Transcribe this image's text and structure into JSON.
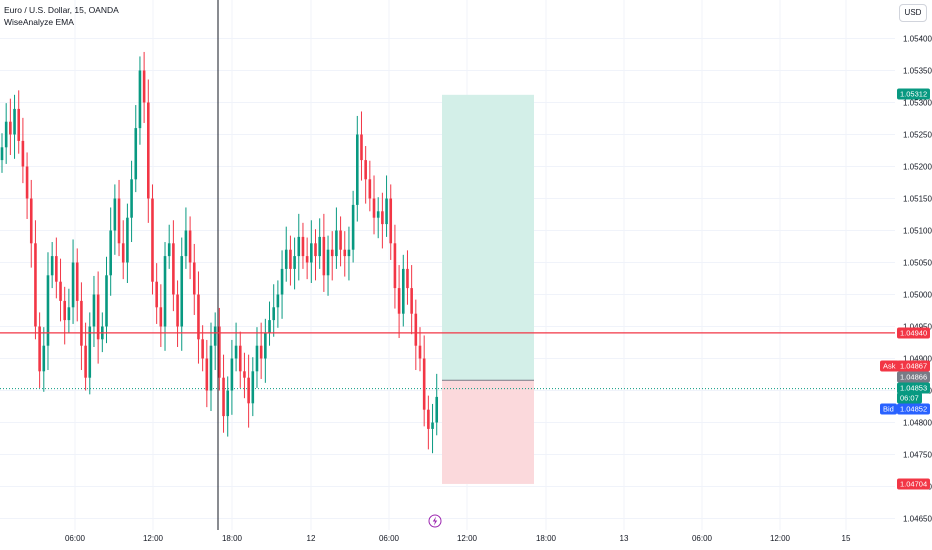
{
  "legend": {
    "symbol": "Euro / U.S. Dollar, 15, OANDA",
    "indicator": "WiseAnalyze EMA"
  },
  "price_axis": {
    "currency": "USD",
    "ticks": [
      "1.05400",
      "1.05350",
      "1.05300",
      "1.05250",
      "1.05200",
      "1.05150",
      "1.05100",
      "1.05050",
      "1.05000",
      "1.04950",
      "1.04900",
      "1.04850",
      "1.04800",
      "1.04750",
      "1.04700",
      "1.04650"
    ],
    "labels": {
      "target": "1.05312",
      "line": "1.04940",
      "ask_label": "Ask",
      "ask": "1.04867",
      "entry": "1.04866",
      "last": "1.04853",
      "countdown": "06:07",
      "bid_label": "Bid",
      "bid": "1.04852",
      "stop": "1.04704"
    }
  },
  "time_axis": {
    "ticks": [
      "06:00",
      "12:00",
      "18:00",
      "12",
      "06:00",
      "12:00",
      "18:00",
      "13",
      "06:00",
      "12:00",
      "15"
    ]
  },
  "colors": {
    "up": "#089981",
    "down": "#f23645",
    "profit_zone": "#d3efe8",
    "loss_zone": "#fbd9dc",
    "line": "#f23645",
    "bid": "#2962ff"
  },
  "chart_data": {
    "type": "candlestick",
    "symbol": "EURUSD",
    "timeframe_minutes": 15,
    "ylim": [
      1.0464,
      1.0543
    ],
    "position": {
      "type": "long",
      "entry": 1.04866,
      "target": 1.05312,
      "stop": 1.04704
    },
    "horizontal_line": 1.0494,
    "last_price": 1.04853,
    "candles_close": [
      1.0523,
      1.0527,
      1.0525,
      1.0529,
      1.0524,
      1.052,
      1.0515,
      1.0508,
      1.0495,
      1.0488,
      1.0492,
      1.0503,
      1.0506,
      1.0502,
      1.0499,
      1.0496,
      1.0498,
      1.0505,
      1.0499,
      1.0492,
      1.0487,
      1.0495,
      1.05,
      1.0493,
      1.0495,
      1.0503,
      1.051,
      1.0515,
      1.0508,
      1.0505,
      1.0512,
      1.0518,
      1.0526,
      1.0535,
      1.053,
      1.0515,
      1.0502,
      1.0498,
      1.0495,
      1.0506,
      1.0508,
      1.05,
      1.0495,
      1.0506,
      1.051,
      1.0505,
      1.05,
      1.0493,
      1.049,
      1.0485,
      1.0492,
      1.0495,
      1.0487,
      1.0481,
      1.0485,
      1.049,
      1.0492,
      1.0488,
      1.0487,
      1.0483,
      1.0488,
      1.0492,
      1.049,
      1.0494,
      1.0496,
      1.0498,
      1.05,
      1.0504,
      1.0507,
      1.0504,
      1.0506,
      1.0509,
      1.0506,
      1.0505,
      1.0508,
      1.0506,
      1.0509,
      1.0503,
      1.0507,
      1.0506,
      1.051,
      1.0507,
      1.0506,
      1.0507,
      1.0514,
      1.0525,
      1.0521,
      1.0518,
      1.0515,
      1.0512,
      1.0513,
      1.0511,
      1.0515,
      1.0508,
      1.0501,
      1.0497,
      1.0504,
      1.0501,
      1.0497,
      1.0492,
      1.049,
      1.0482,
      1.0479,
      1.048,
      1.0484
    ]
  }
}
